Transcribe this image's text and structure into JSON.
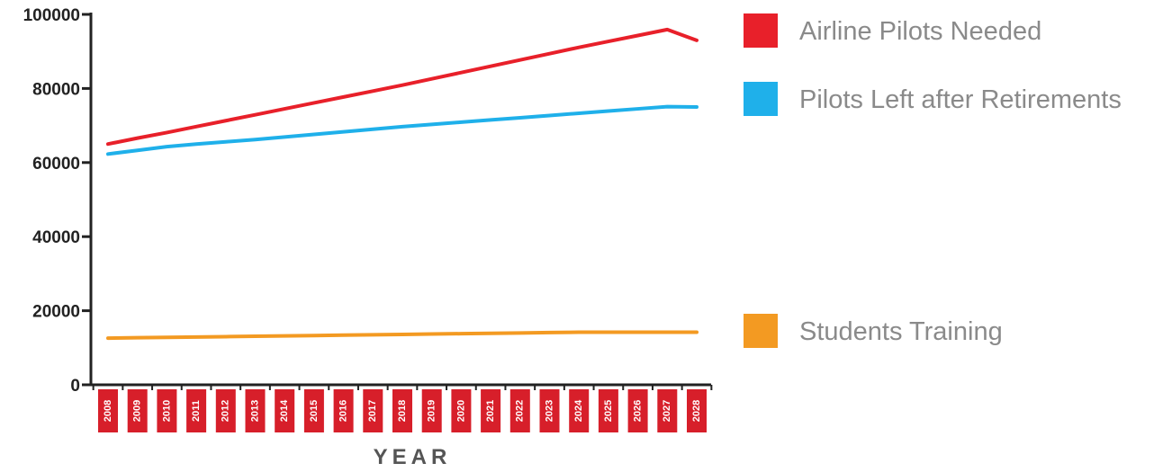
{
  "chart_data": {
    "type": "line",
    "title": "",
    "xlabel": "YEAR",
    "ylabel": "",
    "x": [
      2008,
      2009,
      2010,
      2011,
      2012,
      2013,
      2014,
      2015,
      2016,
      2017,
      2018,
      2019,
      2020,
      2021,
      2022,
      2023,
      2024,
      2025,
      2026,
      2027,
      2028
    ],
    "x_tick_labels": [
      "2008",
      "2009",
      "2010",
      "2011",
      "2012",
      "2013",
      "2014",
      "2015",
      "2016",
      "2017",
      "2018",
      "2019",
      "2020",
      "2021",
      "2022",
      "2023",
      "2024",
      "2025",
      "2026",
      "2027",
      "2028"
    ],
    "ylim": [
      0,
      100000
    ],
    "y_ticks": [
      0,
      20000,
      40000,
      60000,
      80000,
      100000
    ],
    "y_tick_labels": [
      "0",
      "20000",
      "40000",
      "60000",
      "80000",
      "100000"
    ],
    "grid": false,
    "legend_position": "right",
    "series": [
      {
        "name": "Airline Pilots Needed",
        "color": "#e8202a",
        "values": [
          65000,
          66600,
          68100,
          69700,
          71300,
          72900,
          74500,
          76100,
          77700,
          79300,
          80900,
          82600,
          84300,
          86000,
          87700,
          89400,
          91100,
          92700,
          94300,
          95900,
          93000
        ]
      },
      {
        "name": "Pilots Left after Retirements",
        "color": "#1fb0ea",
        "values": [
          62300,
          63300,
          64300,
          65000,
          65600,
          66200,
          66900,
          67600,
          68300,
          69000,
          69700,
          70300,
          70900,
          71500,
          72100,
          72700,
          73300,
          73900,
          74500,
          75100,
          75000
        ]
      },
      {
        "name": "Students Training",
        "color": "#f39a22",
        "values": [
          12600,
          12700,
          12800,
          12900,
          13000,
          13100,
          13200,
          13300,
          13400,
          13500,
          13600,
          13700,
          13800,
          13900,
          14000,
          14100,
          14200,
          14200,
          14200,
          14200,
          14200
        ]
      }
    ]
  }
}
